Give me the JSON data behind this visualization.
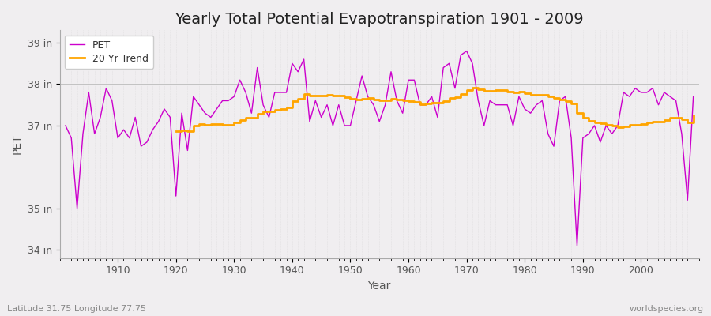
{
  "title": "Yearly Total Potential Evapotranspiration 1901 - 2009",
  "xlabel": "Year",
  "ylabel": "PET",
  "subtitle_left": "Latitude 31.75 Longitude 77.75",
  "subtitle_right": "worldspecies.org",
  "legend_pet": "PET",
  "legend_trend": "20 Yr Trend",
  "pet_color": "#cc00cc",
  "trend_color": "#ffa500",
  "bg_color": "#f0eef0",
  "plot_bg_color": "#f0eef0",
  "years": [
    1901,
    1902,
    1903,
    1904,
    1905,
    1906,
    1907,
    1908,
    1909,
    1910,
    1911,
    1912,
    1913,
    1914,
    1915,
    1916,
    1917,
    1918,
    1919,
    1920,
    1921,
    1922,
    1923,
    1924,
    1925,
    1926,
    1927,
    1928,
    1929,
    1930,
    1931,
    1932,
    1933,
    1934,
    1935,
    1936,
    1937,
    1938,
    1939,
    1940,
    1941,
    1942,
    1943,
    1944,
    1945,
    1946,
    1947,
    1948,
    1949,
    1950,
    1951,
    1952,
    1953,
    1954,
    1955,
    1956,
    1957,
    1958,
    1959,
    1960,
    1961,
    1962,
    1963,
    1964,
    1965,
    1966,
    1967,
    1968,
    1969,
    1970,
    1971,
    1972,
    1973,
    1974,
    1975,
    1976,
    1977,
    1978,
    1979,
    1980,
    1981,
    1982,
    1983,
    1984,
    1985,
    1986,
    1987,
    1988,
    1989,
    1990,
    1991,
    1992,
    1993,
    1994,
    1995,
    1996,
    1997,
    1998,
    1999,
    2000,
    2001,
    2002,
    2003,
    2004,
    2005,
    2006,
    2007,
    2008,
    2009
  ],
  "pet_values": [
    37.0,
    36.7,
    35.0,
    36.8,
    37.8,
    36.8,
    37.2,
    37.9,
    37.6,
    36.7,
    36.9,
    36.7,
    37.2,
    36.5,
    36.6,
    36.9,
    37.1,
    37.4,
    37.2,
    35.3,
    37.3,
    36.4,
    37.7,
    37.5,
    37.3,
    37.2,
    37.4,
    37.6,
    37.6,
    37.7,
    38.1,
    37.8,
    37.3,
    38.4,
    37.5,
    37.2,
    37.8,
    37.8,
    37.8,
    38.5,
    38.3,
    38.6,
    37.1,
    37.6,
    37.2,
    37.5,
    37.0,
    37.5,
    37.0,
    37.0,
    37.6,
    38.2,
    37.7,
    37.5,
    37.1,
    37.5,
    38.3,
    37.6,
    37.3,
    38.1,
    38.1,
    37.5,
    37.5,
    37.7,
    37.2,
    38.4,
    38.5,
    37.9,
    38.7,
    38.8,
    38.5,
    37.6,
    37.0,
    37.6,
    37.5,
    37.5,
    37.5,
    37.0,
    37.7,
    37.4,
    37.3,
    37.5,
    37.6,
    36.8,
    36.5,
    37.6,
    37.7,
    36.7,
    34.1,
    36.7,
    36.8,
    37.0,
    36.6,
    37.0,
    36.8,
    37.0,
    37.8,
    37.7,
    37.9,
    37.8,
    37.8,
    37.9,
    37.5,
    37.8,
    37.7,
    37.6,
    36.8,
    35.2,
    37.7
  ],
  "ylim_min": 33.8,
  "ylim_max": 39.3,
  "ytick_positions": [
    34,
    35,
    37,
    38,
    39
  ],
  "ytick_labels": [
    "34 in",
    "35 in",
    "37 in",
    "38 in",
    "39 in"
  ],
  "trend_window": 20,
  "title_fontsize": 14,
  "axis_fontsize": 10,
  "tick_fontsize": 9,
  "legend_fontsize": 9
}
